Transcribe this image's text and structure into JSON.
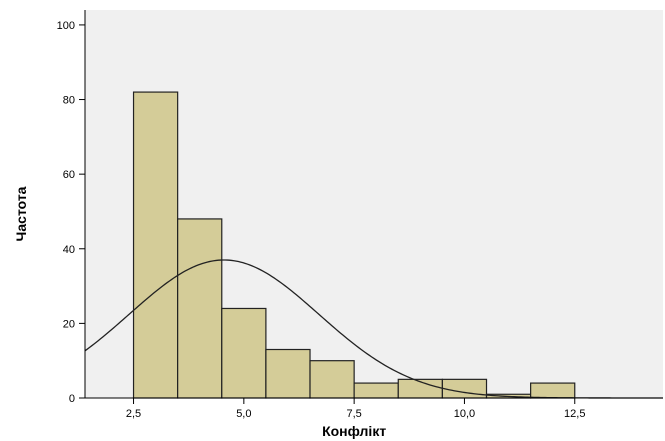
{
  "chart_data": {
    "type": "bar",
    "title": "",
    "xlabel": "Конфлікт",
    "ylabel": "Частота",
    "bins": [
      {
        "start": 2.5,
        "end": 3.5,
        "count": 82
      },
      {
        "start": 3.5,
        "end": 4.5,
        "count": 48
      },
      {
        "start": 4.5,
        "end": 5.5,
        "count": 24
      },
      {
        "start": 5.5,
        "end": 6.5,
        "count": 13
      },
      {
        "start": 6.5,
        "end": 7.5,
        "count": 10
      },
      {
        "start": 7.5,
        "end": 8.5,
        "count": 4
      },
      {
        "start": 8.5,
        "end": 9.5,
        "count": 5
      },
      {
        "start": 9.5,
        "end": 10.5,
        "count": 5
      },
      {
        "start": 10.5,
        "end": 11.5,
        "count": 1
      },
      {
        "start": 11.5,
        "end": 12.5,
        "count": 4
      }
    ],
    "normal_curve": {
      "mean": 4.55,
      "sd": 2.15,
      "peak": 37
    },
    "xlim": [
      1.4,
      14.5
    ],
    "ylim": [
      0,
      104
    ],
    "xticks": [
      2.5,
      5.0,
      7.5,
      10.0,
      12.5
    ],
    "xtick_labels": [
      "2,5",
      "5,0",
      "7,5",
      "10,0",
      "12,5"
    ],
    "yticks": [
      0,
      20,
      40,
      60,
      80,
      100
    ],
    "ytick_labels": [
      "0",
      "20",
      "40",
      "60",
      "80",
      "100"
    ],
    "grid": false,
    "colors": {
      "plot_bg": "#f0f0f0",
      "bar_fill": "#d4cc98",
      "bar_stroke": "#222222",
      "curve": "#222222",
      "axis": "#000000"
    }
  }
}
